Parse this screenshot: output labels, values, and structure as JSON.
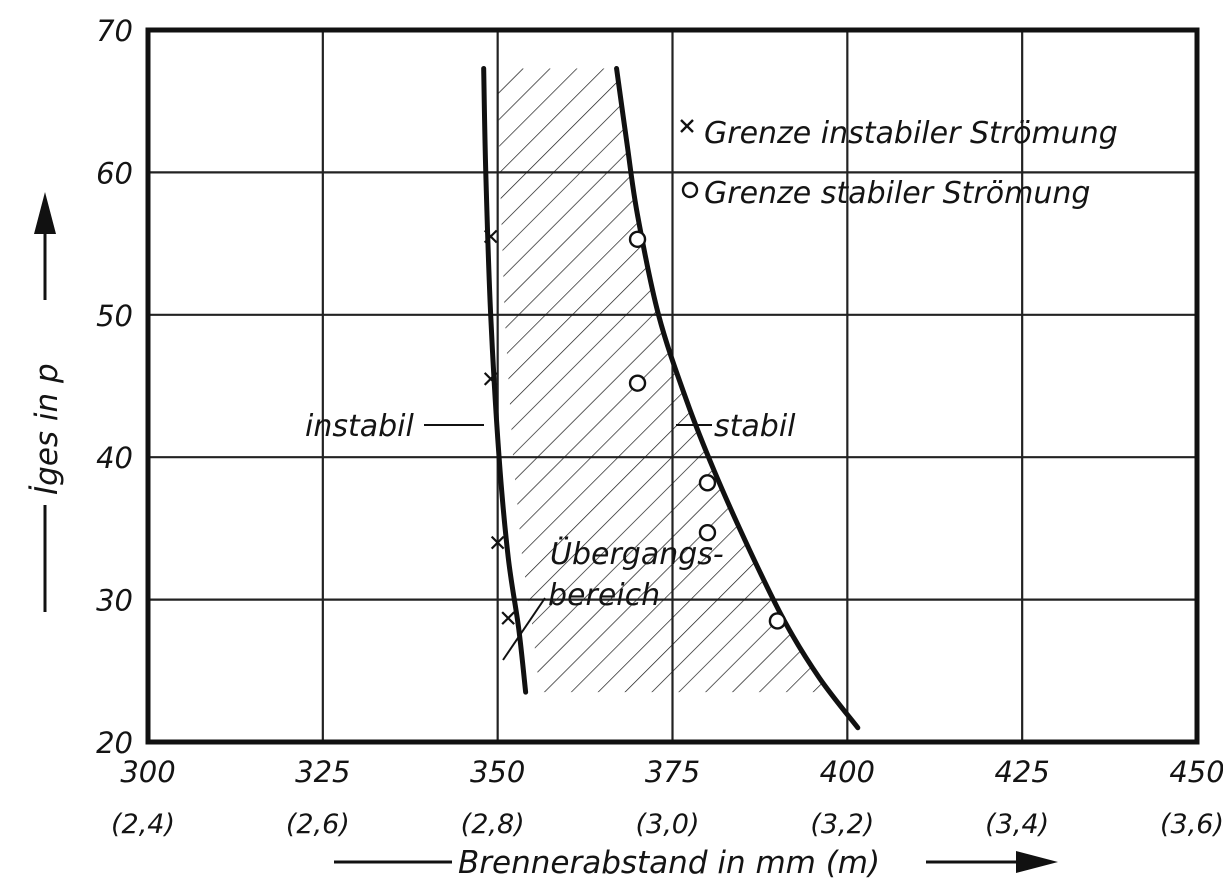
{
  "chart_data": {
    "type": "scatter",
    "xlabel": "Brennerabstand in mm (m)",
    "ylabel": "İges in p",
    "xlim": [
      300,
      450
    ],
    "ylim": [
      20,
      70
    ],
    "x_ticks": [
      300,
      325,
      350,
      375,
      400,
      425,
      450
    ],
    "x_ticks_secondary": [
      "(2,4)",
      "(2,6)",
      "(2,8)",
      "(3,0)",
      "(3,2)",
      "(3,4)",
      "(3,6)"
    ],
    "y_ticks": [
      20,
      30,
      40,
      50,
      60,
      70
    ],
    "grid": true,
    "legend_position": "top-right",
    "series": [
      {
        "name": "Grenze instabiler Strömung",
        "marker": "x",
        "points": [
          [
            349,
            55.5
          ],
          [
            349,
            45.5
          ],
          [
            350,
            34
          ],
          [
            351.5,
            28.7
          ]
        ]
      },
      {
        "name": "Grenze stabiler Strömung",
        "marker": "o",
        "points": [
          [
            370,
            55.3
          ],
          [
            370,
            45.2
          ],
          [
            380,
            38.2
          ],
          [
            380,
            34.7
          ],
          [
            390,
            28.5
          ]
        ]
      }
    ],
    "curves": [
      {
        "label": "instabil",
        "points": [
          [
            348,
            67.3
          ],
          [
            348.3,
            60
          ],
          [
            349,
            50
          ],
          [
            350.2,
            40
          ],
          [
            351.5,
            33
          ],
          [
            353,
            28
          ],
          [
            354,
            23.5
          ]
        ]
      },
      {
        "label": "stabil",
        "points": [
          [
            367,
            67.3
          ],
          [
            368.5,
            62
          ],
          [
            370,
            57
          ],
          [
            373,
            50
          ],
          [
            377,
            44
          ],
          [
            381,
            39
          ],
          [
            386,
            33.5
          ],
          [
            391,
            28.5
          ],
          [
            396,
            24.5
          ],
          [
            401.5,
            21
          ]
        ]
      }
    ],
    "annotations": [
      {
        "text": "instabil"
      },
      {
        "text": "stabil"
      },
      {
        "text_lines": [
          "Übergangs-",
          "bereich"
        ]
      }
    ],
    "region_label": "Übergangsbereich (hatched)"
  }
}
